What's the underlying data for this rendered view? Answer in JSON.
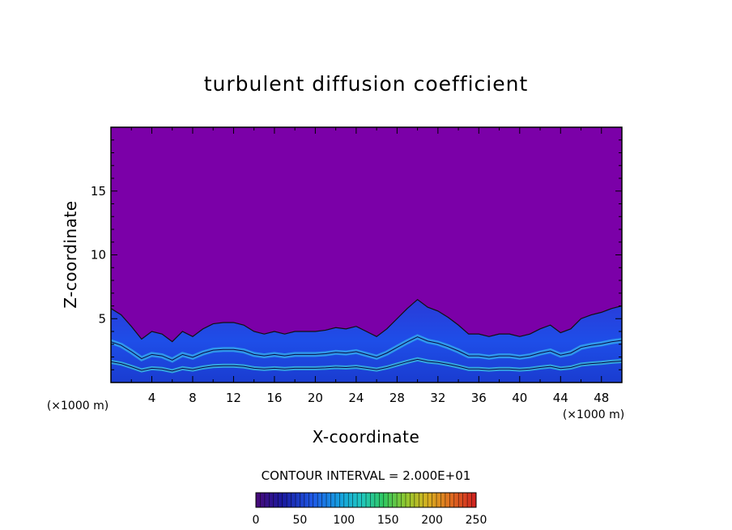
{
  "chart_data": {
    "type": "heatmap",
    "title": "turbulent diffusion coefficient",
    "xlabel": "X-coordinate",
    "ylabel": "Z-coordinate",
    "x_unit": "(×1000 m)",
    "y_unit": "(×1000 m)",
    "xlim": [
      0,
      50
    ],
    "ylim": [
      0,
      20
    ],
    "x_ticks": [
      4,
      8,
      12,
      16,
      20,
      24,
      28,
      32,
      36,
      40,
      44,
      48
    ],
    "y_ticks": [
      5,
      10,
      15
    ],
    "background_value": 0,
    "background_color": "#7b00a8",
    "contour_interval_text": "CONTOUR INTERVAL = 2.000E+01",
    "colorbar": {
      "min": 0,
      "max": 250,
      "ticks": [
        0,
        50,
        100,
        150,
        200,
        250
      ]
    },
    "turbulent_layer_top": [
      {
        "x": 0,
        "z": 5.8
      },
      {
        "x": 1,
        "z": 5.3
      },
      {
        "x": 2,
        "z": 4.4
      },
      {
        "x": 3,
        "z": 3.4
      },
      {
        "x": 4,
        "z": 4.0
      },
      {
        "x": 5,
        "z": 3.8
      },
      {
        "x": 6,
        "z": 3.2
      },
      {
        "x": 7,
        "z": 4.0
      },
      {
        "x": 8,
        "z": 3.6
      },
      {
        "x": 9,
        "z": 4.2
      },
      {
        "x": 10,
        "z": 4.6
      },
      {
        "x": 11,
        "z": 4.7
      },
      {
        "x": 12,
        "z": 4.7
      },
      {
        "x": 13,
        "z": 4.5
      },
      {
        "x": 14,
        "z": 4.0
      },
      {
        "x": 15,
        "z": 3.8
      },
      {
        "x": 16,
        "z": 4.0
      },
      {
        "x": 17,
        "z": 3.8
      },
      {
        "x": 18,
        "z": 4.0
      },
      {
        "x": 19,
        "z": 4.0
      },
      {
        "x": 20,
        "z": 4.0
      },
      {
        "x": 21,
        "z": 4.1
      },
      {
        "x": 22,
        "z": 4.3
      },
      {
        "x": 23,
        "z": 4.2
      },
      {
        "x": 24,
        "z": 4.4
      },
      {
        "x": 25,
        "z": 4.0
      },
      {
        "x": 26,
        "z": 3.6
      },
      {
        "x": 27,
        "z": 4.2
      },
      {
        "x": 28,
        "z": 5.0
      },
      {
        "x": 29,
        "z": 5.8
      },
      {
        "x": 30,
        "z": 6.5
      },
      {
        "x": 31,
        "z": 5.9
      },
      {
        "x": 32,
        "z": 5.6
      },
      {
        "x": 33,
        "z": 5.1
      },
      {
        "x": 34,
        "z": 4.5
      },
      {
        "x": 35,
        "z": 3.8
      },
      {
        "x": 36,
        "z": 3.8
      },
      {
        "x": 37,
        "z": 3.6
      },
      {
        "x": 38,
        "z": 3.8
      },
      {
        "x": 39,
        "z": 3.8
      },
      {
        "x": 40,
        "z": 3.6
      },
      {
        "x": 41,
        "z": 3.8
      },
      {
        "x": 42,
        "z": 4.2
      },
      {
        "x": 43,
        "z": 4.5
      },
      {
        "x": 44,
        "z": 3.9
      },
      {
        "x": 45,
        "z": 4.2
      },
      {
        "x": 46,
        "z": 5.0
      },
      {
        "x": 47,
        "z": 5.3
      },
      {
        "x": 48,
        "z": 5.5
      },
      {
        "x": 49,
        "z": 5.8
      },
      {
        "x": 50,
        "z": 6.0
      }
    ]
  }
}
